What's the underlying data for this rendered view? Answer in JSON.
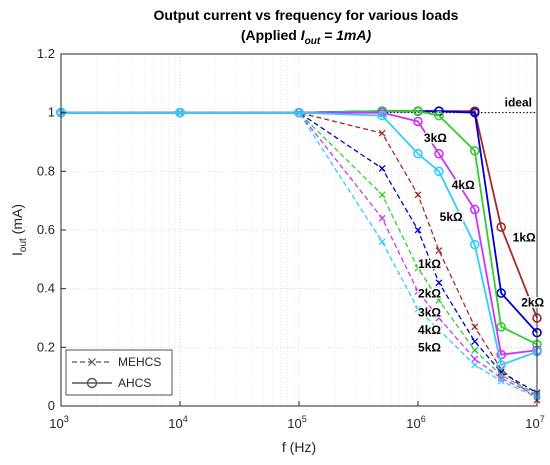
{
  "chart_data": {
    "type": "line",
    "title_line1": "Output current vs frequency for various loads",
    "title_line2_prefix": "(Applied ",
    "title_line2_var": "I",
    "title_line2_sub": "out",
    "title_line2_suffix": " = 1mA)",
    "xlabel": "f (Hz)",
    "ylabel_main": "I",
    "ylabel_sub": "out",
    "ylabel_unit": " (mA)",
    "x_scale": "log",
    "xlim": [
      1000,
      10000000
    ],
    "ylim": [
      0,
      1.2
    ],
    "x_ticks": [
      {
        "value": 1000,
        "base": "10",
        "exp": "3"
      },
      {
        "value": 10000,
        "base": "10",
        "exp": "4"
      },
      {
        "value": 100000,
        "base": "10",
        "exp": "5"
      },
      {
        "value": 1000000,
        "base": "10",
        "exp": "6"
      },
      {
        "value": 10000000,
        "base": "10",
        "exp": "7"
      }
    ],
    "y_ticks": [
      "0",
      "0.2",
      "0.4",
      "0.6",
      "0.8",
      "1",
      "1.2"
    ],
    "grid": true,
    "ideal": {
      "y": 1,
      "label": "ideal"
    },
    "legend": {
      "placement": "bottom-left",
      "entries": [
        {
          "label": "MEHCS",
          "style": "dashed",
          "marker": "x",
          "color": "#555555"
        },
        {
          "label": "AHCS",
          "style": "solid",
          "marker": "o",
          "color": "#555555"
        }
      ]
    },
    "series": [
      {
        "group": "AHCS",
        "load": "1kΩ",
        "color": "#a52a2a",
        "style": "solid",
        "marker": "o",
        "x": [
          1000,
          10000,
          100000,
          500000,
          1000000,
          1500000,
          3000000,
          5000000,
          10000000
        ],
        "y": [
          1.0,
          1.0,
          1.0,
          1.005,
          1.005,
          1.005,
          1.005,
          0.61,
          0.3
        ]
      },
      {
        "group": "AHCS",
        "load": "2kΩ",
        "color": "#0000cd",
        "style": "solid",
        "marker": "o",
        "x": [
          1000,
          10000,
          100000,
          500000,
          1000000,
          1500000,
          3000000,
          5000000,
          10000000
        ],
        "y": [
          1.0,
          1.0,
          1.0,
          1.005,
          1.005,
          1.005,
          1.0,
          0.385,
          0.25
        ]
      },
      {
        "group": "AHCS",
        "load": "3kΩ",
        "color": "#32cd32",
        "style": "solid",
        "marker": "o",
        "x": [
          1000,
          10000,
          100000,
          500000,
          1000000,
          1500000,
          3000000,
          5000000,
          10000000
        ],
        "y": [
          1.0,
          1.0,
          1.0,
          1.005,
          1.005,
          0.99,
          0.87,
          0.27,
          0.21
        ]
      },
      {
        "group": "AHCS",
        "load": "4kΩ",
        "color": "#cc33ff",
        "style": "solid",
        "marker": "o",
        "x": [
          1000,
          10000,
          100000,
          500000,
          1000000,
          1500000,
          3000000,
          5000000,
          10000000
        ],
        "y": [
          1.0,
          1.0,
          1.0,
          1.0,
          0.97,
          0.86,
          0.67,
          0.175,
          0.19
        ]
      },
      {
        "group": "AHCS",
        "load": "5kΩ",
        "color": "#33ccff",
        "style": "solid",
        "marker": "o",
        "x": [
          1000,
          10000,
          100000,
          500000,
          1000000,
          1500000,
          3000000,
          5000000,
          10000000
        ],
        "y": [
          1.0,
          1.0,
          1.0,
          0.99,
          0.86,
          0.8,
          0.55,
          0.14,
          0.185
        ]
      },
      {
        "group": "MEHCS",
        "load": "1kΩ",
        "color": "#a52a2a",
        "style": "dashed",
        "marker": "x",
        "x": [
          1000,
          10000,
          100000,
          500000,
          1000000,
          1500000,
          3000000,
          5000000,
          10000000
        ],
        "y": [
          1.0,
          1.0,
          1.0,
          0.93,
          0.72,
          0.53,
          0.27,
          0.125,
          0.02
        ]
      },
      {
        "group": "MEHCS",
        "load": "2kΩ",
        "color": "#0000cd",
        "style": "dashed",
        "marker": "x",
        "x": [
          1000,
          10000,
          100000,
          500000,
          1000000,
          1500000,
          3000000,
          5000000,
          10000000
        ],
        "y": [
          1.0,
          1.0,
          1.0,
          0.81,
          0.6,
          0.42,
          0.22,
          0.115,
          0.045
        ]
      },
      {
        "group": "MEHCS",
        "load": "3kΩ",
        "color": "#32cd32",
        "style": "dashed",
        "marker": "x",
        "x": [
          1000,
          10000,
          100000,
          500000,
          1000000,
          1500000,
          3000000,
          5000000,
          10000000
        ],
        "y": [
          1.0,
          1.0,
          1.0,
          0.72,
          0.47,
          0.36,
          0.19,
          0.105,
          0.04
        ]
      },
      {
        "group": "MEHCS",
        "load": "4kΩ",
        "color": "#cc33ff",
        "style": "dashed",
        "marker": "x",
        "x": [
          1000,
          10000,
          100000,
          500000,
          1000000,
          1500000,
          3000000,
          5000000,
          10000000
        ],
        "y": [
          1.0,
          1.0,
          1.0,
          0.64,
          0.39,
          0.3,
          0.16,
          0.095,
          0.035
        ]
      },
      {
        "group": "MEHCS",
        "load": "5kΩ",
        "color": "#33ccff",
        "style": "dashed",
        "marker": "x",
        "x": [
          1000,
          10000,
          100000,
          500000,
          1000000,
          1500000,
          3000000,
          5000000,
          10000000
        ],
        "y": [
          1.0,
          1.0,
          1.0,
          0.56,
          0.33,
          0.26,
          0.14,
          0.085,
          0.03
        ]
      }
    ],
    "annotations": [
      {
        "text": "3kΩ",
        "x": 1400000,
        "y": 0.9
      },
      {
        "text": "4kΩ",
        "x": 2400000,
        "y": 0.74
      },
      {
        "text": "5kΩ",
        "x": 1900000,
        "y": 0.63
      },
      {
        "text": "1kΩ",
        "x": 7800000,
        "y": 0.56
      },
      {
        "text": "1kΩ",
        "x": 1250000,
        "y": 0.47
      },
      {
        "text": "2kΩ",
        "x": 9200000,
        "y": 0.34
      },
      {
        "text": "2kΩ",
        "x": 1250000,
        "y": 0.37
      },
      {
        "text": "3kΩ",
        "x": 1250000,
        "y": 0.305
      },
      {
        "text": "4kΩ",
        "x": 1250000,
        "y": 0.245
      },
      {
        "text": "5kΩ",
        "x": 1250000,
        "y": 0.185
      }
    ]
  }
}
